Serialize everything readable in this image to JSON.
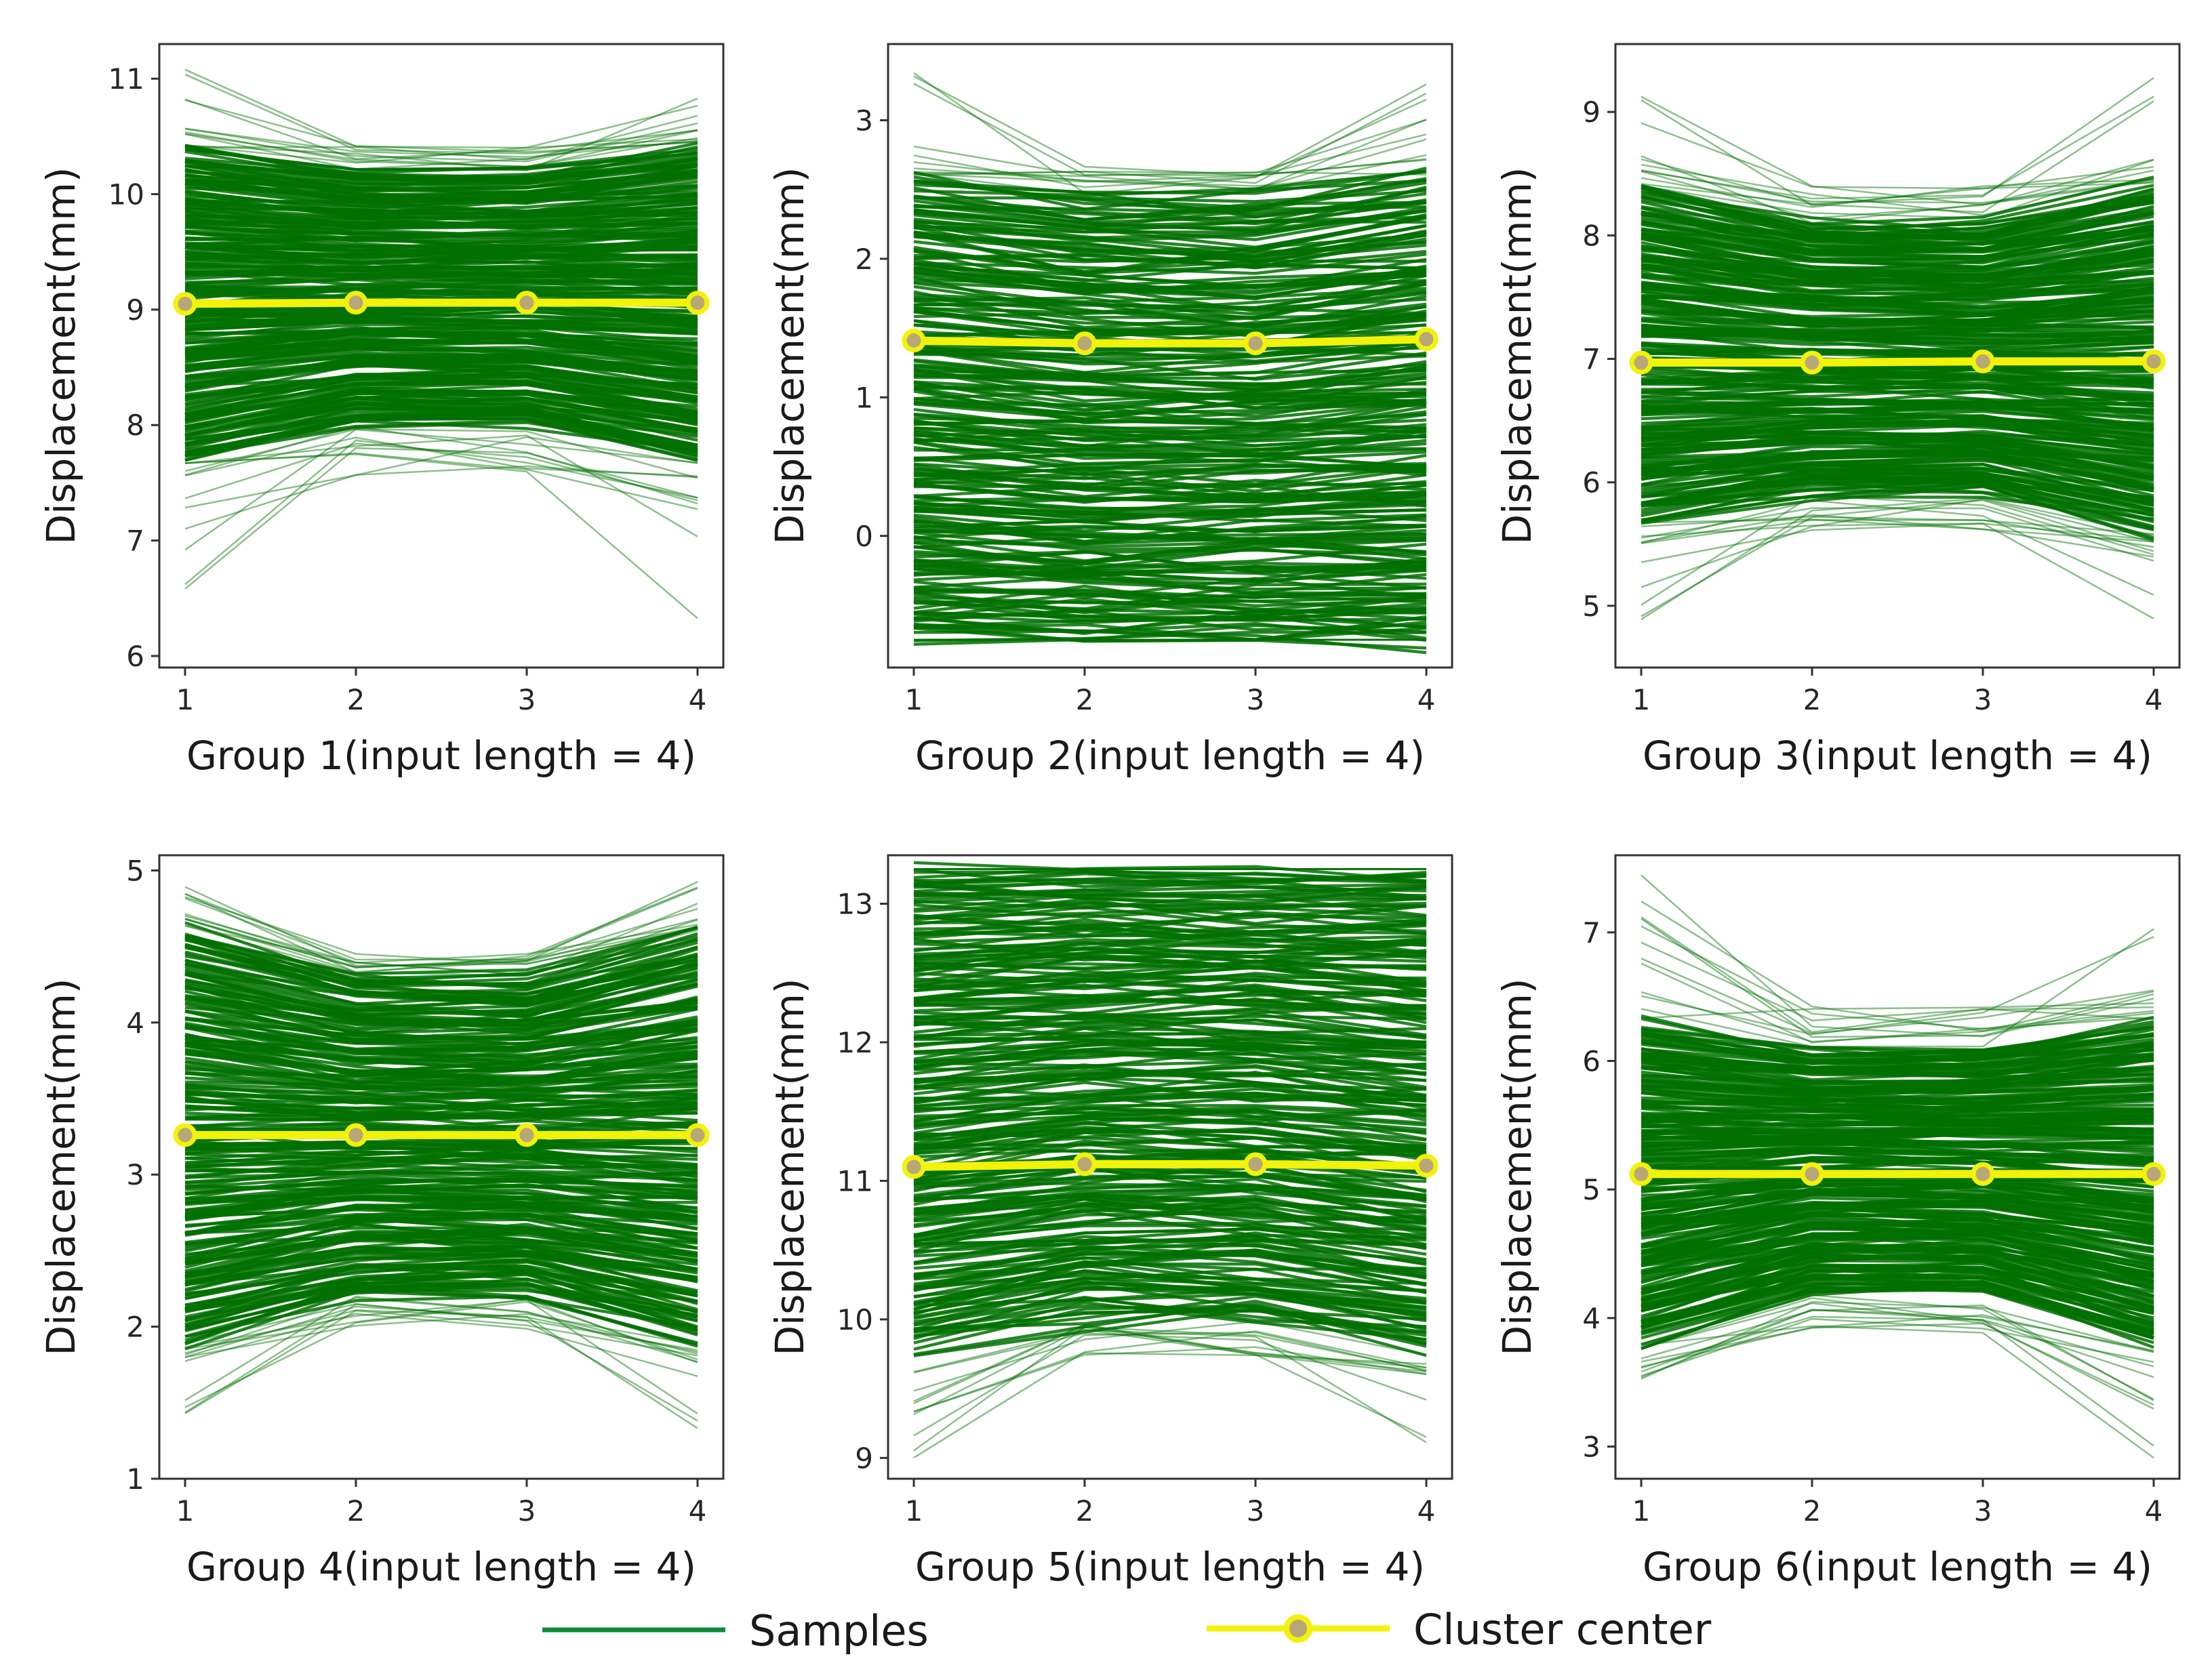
{
  "colors": {
    "samples": "#007000",
    "samples_legend": "#0a8a3a",
    "center_line": "#f2f20a",
    "center_marker_face": "#b8a878",
    "axes": "#333333"
  },
  "legend": {
    "samples_label": "Samples",
    "center_label": "Cluster center",
    "placement": "bottom-center"
  },
  "chart_data": [
    {
      "type": "line",
      "title": "",
      "xlabel": "Group 1(input length = 4)",
      "ylabel": "Displacement(mm)",
      "x": [
        1,
        2,
        3,
        4
      ],
      "xticks": [
        "1",
        "2",
        "3",
        "4"
      ],
      "ylim": [
        5.9,
        11.3
      ],
      "yticks": [
        "6",
        "7",
        "8",
        "9",
        "10",
        "11"
      ],
      "samples_band": {
        "lower": [
          7.7,
          8.0,
          8.0,
          7.7
        ],
        "upper": [
          10.4,
          10.2,
          10.2,
          10.4
        ],
        "min": 6.2,
        "max": 11.1
      },
      "cluster_center": [
        9.05,
        9.06,
        9.06,
        9.06
      ]
    },
    {
      "type": "line",
      "title": "",
      "xlabel": "Group 2(input length = 4)",
      "ylabel": "Displacement(mm)",
      "x": [
        1,
        2,
        3,
        4
      ],
      "xticks": [
        "1",
        "2",
        "3",
        "4"
      ],
      "ylim": [
        -0.95,
        3.55
      ],
      "yticks": [
        "0",
        "1",
        "2",
        "3"
      ],
      "samples_band": {
        "lower": [
          -0.75,
          -0.75,
          -0.75,
          -0.75
        ],
        "upper": [
          2.6,
          2.45,
          2.45,
          2.6
        ],
        "min": -0.75,
        "max": 3.35
      },
      "cluster_center": [
        1.41,
        1.39,
        1.39,
        1.42
      ]
    },
    {
      "type": "line",
      "title": "",
      "xlabel": "Group 3(input length = 4)",
      "ylabel": "Displacement(mm)",
      "x": [
        1,
        2,
        3,
        4
      ],
      "xticks": [
        "1",
        "2",
        "3",
        "4"
      ],
      "ylim": [
        4.5,
        9.55
      ],
      "yticks": [
        "5",
        "6",
        "7",
        "8",
        "9"
      ],
      "samples_band": {
        "lower": [
          5.7,
          5.9,
          5.9,
          5.6
        ],
        "upper": [
          8.4,
          8.1,
          8.1,
          8.4
        ],
        "min": 4.75,
        "max": 9.3
      },
      "cluster_center": [
        6.97,
        6.97,
        6.98,
        6.98
      ]
    },
    {
      "type": "line",
      "title": "",
      "xlabel": "Group 4(input length = 4)",
      "ylabel": "Displacement(mm)",
      "x": [
        1,
        2,
        3,
        4
      ],
      "xticks": [
        "1",
        "2",
        "3",
        "4"
      ],
      "ylim": [
        1.0,
        5.1
      ],
      "yticks": [
        "1",
        "2",
        "3",
        "4",
        "5"
      ],
      "samples_band": {
        "lower": [
          1.9,
          2.2,
          2.2,
          1.9
        ],
        "upper": [
          4.6,
          4.3,
          4.3,
          4.6
        ],
        "min": 1.3,
        "max": 4.95
      },
      "cluster_center": [
        3.26,
        3.26,
        3.26,
        3.26
      ]
    },
    {
      "type": "line",
      "title": "",
      "xlabel": "Group 5(input length = 4)",
      "ylabel": "Displacement(mm)",
      "x": [
        1,
        2,
        3,
        4
      ],
      "xticks": [
        "1",
        "2",
        "3",
        "4"
      ],
      "ylim": [
        8.85,
        13.35
      ],
      "yticks": [
        "9",
        "10",
        "11",
        "12",
        "13"
      ],
      "samples_band": {
        "lower": [
          9.8,
          10.0,
          10.0,
          9.8
        ],
        "upper": [
          13.25,
          13.25,
          13.25,
          13.25
        ],
        "min": 8.95,
        "max": 13.25
      },
      "cluster_center": [
        11.1,
        11.12,
        11.12,
        11.11
      ]
    },
    {
      "type": "line",
      "title": "",
      "xlabel": "Group 6(input length = 4)",
      "ylabel": "Displacement(mm)",
      "x": [
        1,
        2,
        3,
        4
      ],
      "xticks": [
        "1",
        "2",
        "3",
        "4"
      ],
      "ylim": [
        2.75,
        7.6
      ],
      "yticks": [
        "3",
        "4",
        "5",
        "6",
        "7"
      ],
      "samples_band": {
        "lower": [
          3.8,
          4.2,
          4.2,
          3.8
        ],
        "upper": [
          6.3,
          6.1,
          6.1,
          6.3
        ],
        "min": 2.9,
        "max": 7.45
      },
      "cluster_center": [
        5.12,
        5.12,
        5.12,
        5.12
      ]
    }
  ]
}
